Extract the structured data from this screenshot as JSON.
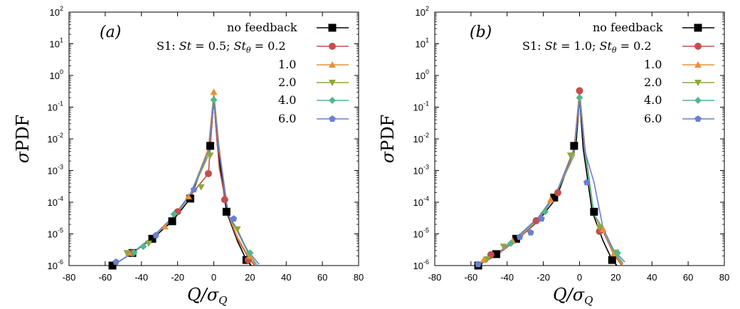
{
  "chart_data": [
    {
      "panel_label": "(a)",
      "type": "line",
      "ylabel": "σPDF",
      "xlabel": "Q/σ_Q",
      "xlim": [
        -80,
        80
      ],
      "ylim": [
        1e-06,
        100
      ],
      "y_scale": "log",
      "x_ticks": [
        "-80",
        "-60",
        "-40",
        "-20",
        "0",
        "20",
        "40",
        "60",
        "80"
      ],
      "legend": [
        "no feedback",
        "S1: St = 0.5; St_θ = 0.2",
        "1.0",
        "2.0",
        "4.0",
        "6.0"
      ],
      "legend_position": "top-right",
      "series": [
        {
          "name": "no feedback",
          "color": "#000000",
          "marker": "square",
          "x": [
            -56,
            -45,
            -34,
            -23,
            -13,
            -2,
            0,
            2,
            7,
            13,
            18,
            23
          ],
          "y": [
            1e-06,
            2.5e-06,
            7e-06,
            2.5e-05,
            0.00013,
            0.006,
            0.18,
            0.006,
            5e-05,
            6e-06,
            1.5e-06,
            7e-07
          ]
        },
        {
          "name": "St_θ = 0.2",
          "color": "#c0504d",
          "marker": "circle",
          "x": [
            -56,
            -45,
            -34,
            -23,
            -13,
            -3,
            0,
            3,
            8,
            13,
            19,
            24
          ],
          "y": [
            1e-06,
            2.5e-06,
            7.5e-06,
            2.8e-05,
            0.00016,
            0.0008,
            0.2,
            0.0012,
            4e-05,
            7e-06,
            1.8e-06,
            8e-07
          ]
        },
        {
          "name": "1.0",
          "color": "#e69138",
          "marker": "triangle-up",
          "x": [
            -56,
            -45,
            -34,
            -23,
            -13,
            -3,
            0,
            3,
            8,
            13,
            19,
            24
          ],
          "y": [
            1e-06,
            2.5e-06,
            7.5e-06,
            3e-05,
            0.00016,
            0.005,
            0.3,
            0.005,
            4e-05,
            8e-06,
            2e-06,
            9e-07
          ]
        },
        {
          "name": "2.0",
          "color": "#8fa63c",
          "marker": "triangle-down",
          "x": [
            -56,
            -45,
            -34,
            -23,
            -13,
            -3,
            0,
            3,
            8,
            13,
            19,
            24
          ],
          "y": [
            1e-06,
            2.5e-06,
            7.5e-06,
            3e-05,
            0.00017,
            0.003,
            0.22,
            0.004,
            4e-05,
            1.4e-05,
            2.5e-06,
            1e-06
          ]
        },
        {
          "name": "4.0",
          "color": "#4fb88c",
          "marker": "diamond",
          "x": [
            -56,
            -45,
            -34,
            -23,
            -13,
            -3,
            0,
            3,
            8,
            13,
            19,
            24
          ],
          "y": [
            1e-06,
            2.5e-06,
            7.5e-06,
            3e-05,
            0.00017,
            0.004,
            0.18,
            0.004,
            4e-05,
            1.2e-05,
            2.5e-06,
            1e-06
          ]
        },
        {
          "name": "6.0",
          "color": "#6a7fd0",
          "marker": "pentagon",
          "x": [
            -56,
            -45,
            -34,
            -23,
            -13,
            -3,
            0,
            3,
            8,
            13,
            19,
            25
          ],
          "y": [
            1e-06,
            2.5e-06,
            8e-06,
            3.2e-05,
            0.00018,
            0.004,
            0.16,
            0.004,
            4e-05,
            1.2e-05,
            2.8e-06,
            1.1e-06
          ]
        }
      ],
      "markers": [
        {
          "series": 0,
          "pts": [
            [
              -56,
              1e-06
            ],
            [
              -45,
              2.5e-06
            ],
            [
              -34,
              7e-06
            ],
            [
              -23,
              2.5e-05
            ],
            [
              -13,
              0.00013
            ],
            [
              -2,
              0.006
            ],
            [
              7,
              5e-05
            ],
            [
              18,
              1.5e-06
            ]
          ]
        },
        {
          "series": 1,
          "pts": [
            [
              -45,
              2.5e-06
            ],
            [
              -20,
              5e-05
            ],
            [
              -3,
              0.0008
            ],
            [
              6,
              0.00012
            ],
            [
              19,
              1.5e-06
            ]
          ]
        },
        {
          "series": 2,
          "pts": [
            [
              -47,
              2.5e-06
            ],
            [
              -27,
              1.7e-05
            ],
            [
              -14,
              0.00015
            ],
            [
              0,
              0.3
            ],
            [
              20,
              2e-06
            ]
          ]
        },
        {
          "series": 3,
          "pts": [
            [
              -48,
              2.5e-06
            ],
            [
              -36,
              5e-06
            ],
            [
              -7,
              0.0003
            ],
            [
              -2,
              0.003
            ],
            [
              13,
              1.4e-05
            ]
          ]
        },
        {
          "series": 4,
          "pts": [
            [
              -44,
              2.6e-06
            ],
            [
              -39,
              4e-06
            ],
            [
              -22,
              4.2e-05
            ],
            [
              0,
              0.17
            ],
            [
              20,
              2.5e-06
            ]
          ]
        },
        {
          "series": 5,
          "pts": [
            [
              -54,
              1.3e-06
            ],
            [
              -32,
              9e-06
            ],
            [
              -11,
              0.00025
            ],
            [
              11,
              3e-05
            ]
          ]
        }
      ]
    },
    {
      "panel_label": "(b)",
      "type": "line",
      "ylabel": "σPDF",
      "xlabel": "Q/σ_Q",
      "xlim": [
        -80,
        80
      ],
      "ylim": [
        1e-06,
        100
      ],
      "y_scale": "log",
      "x_ticks": [
        "-80",
        "-60",
        "-40",
        "-20",
        "0",
        "20",
        "40",
        "60",
        "80"
      ],
      "legend": [
        "no feedback",
        "S1: St = 1.0; St_θ = 0.2",
        "1.0",
        "2.0",
        "4.0",
        "6.0"
      ],
      "legend_position": "top-right",
      "series": [
        {
          "name": "no feedback",
          "color": "#000000",
          "marker": "square",
          "x": [
            -56,
            -45,
            -34,
            -23,
            -13,
            -2,
            0,
            2,
            7,
            13,
            18,
            23
          ],
          "y": [
            1e-06,
            2.3e-06,
            7e-06,
            2.5e-05,
            0.00013,
            0.006,
            0.2,
            0.005,
            5e-05,
            6e-06,
            1.5e-06,
            7e-07
          ]
        },
        {
          "name": "St_θ = 0.2",
          "color": "#c0504d",
          "marker": "circle",
          "x": [
            -56,
            -45,
            -34,
            -23,
            -13,
            -3,
            0,
            3,
            8,
            13,
            19,
            24
          ],
          "y": [
            1e-06,
            2.3e-06,
            7e-06,
            2.6e-05,
            0.00018,
            0.005,
            0.33,
            0.005,
            4e-05,
            1.2e-05,
            2.2e-06,
            9e-07
          ]
        },
        {
          "name": "1.0",
          "color": "#e69138",
          "marker": "triangle-up",
          "x": [
            -56,
            -45,
            -34,
            -23,
            -13,
            -3,
            0,
            3,
            8,
            13,
            19,
            24
          ],
          "y": [
            1e-06,
            2.4e-06,
            7.5e-06,
            2.8e-05,
            0.00018,
            0.004,
            0.3,
            0.0045,
            4e-05,
            1.3e-05,
            2.4e-06,
            1e-06
          ]
        },
        {
          "name": "2.0",
          "color": "#8fa63c",
          "marker": "triangle-down",
          "x": [
            -56,
            -45,
            -34,
            -23,
            -13,
            -3,
            0,
            3,
            8,
            13,
            19,
            24
          ],
          "y": [
            1e-06,
            2.5e-06,
            8e-06,
            3e-05,
            0.00018,
            0.003,
            0.25,
            0.004,
            4e-05,
            1.5e-05,
            2.6e-06,
            1.1e-06
          ]
        },
        {
          "name": "4.0",
          "color": "#4fb88c",
          "marker": "diamond",
          "x": [
            -56,
            -45,
            -34,
            -23,
            -13,
            -3,
            0,
            3,
            8,
            13,
            19,
            24
          ],
          "y": [
            1e-06,
            2.5e-06,
            8e-06,
            3e-05,
            0.00018,
            0.004,
            0.2,
            0.004,
            4e-05,
            1.5e-05,
            2.8e-06,
            1.2e-06
          ]
        },
        {
          "name": "6.0",
          "color": "#6a7fd0",
          "marker": "pentagon",
          "x": [
            -56,
            -45,
            -34,
            -23,
            -13,
            -3,
            0,
            3,
            8,
            13,
            19,
            25
          ],
          "y": [
            1e-06,
            2.5e-06,
            8.5e-06,
            3.2e-05,
            0.00019,
            0.004,
            0.18,
            0.004,
            0.00042,
            1.5e-05,
            3e-06,
            1.3e-06
          ]
        }
      ],
      "markers": [
        {
          "series": 0,
          "pts": [
            [
              -56,
              1e-06
            ],
            [
              -46,
              2.3e-06
            ],
            [
              -35,
              7e-06
            ],
            [
              -14,
              0.00014
            ],
            [
              -3,
              0.006
            ],
            [
              8,
              5e-05
            ],
            [
              18,
              1.5e-06
            ]
          ]
        },
        {
          "series": 1,
          "pts": [
            [
              -49,
              2.2e-06
            ],
            [
              -24,
              2.6e-05
            ],
            [
              -12,
              0.0002
            ],
            [
              0,
              0.33
            ],
            [
              11,
              1.2e-05
            ]
          ]
        },
        {
          "series": 2,
          "pts": [
            [
              -53,
              1.5e-06
            ],
            [
              -37,
              6e-06
            ],
            [
              -16,
              0.00012
            ],
            [
              13,
              1.4e-05
            ],
            [
              19,
              2.4e-06
            ]
          ]
        },
        {
          "series": 3,
          "pts": [
            [
              -51,
              1.6e-06
            ],
            [
              -42,
              4e-06
            ],
            [
              -5,
              0.003
            ],
            [
              11,
              1.6e-05
            ],
            [
              20,
              2.6e-06
            ]
          ]
        },
        {
          "series": 4,
          "pts": [
            [
              -38,
              5e-06
            ],
            [
              -19,
              5e-05
            ],
            [
              0,
              0.2
            ],
            [
              21,
              2.5e-06
            ]
          ]
        },
        {
          "series": 5,
          "pts": [
            [
              -56,
              1.1e-06
            ],
            [
              -33,
              8e-06
            ],
            [
              -21,
              3e-05
            ],
            [
              -27,
              1.1e-05
            ],
            [
              4,
              0.00042
            ]
          ]
        }
      ]
    }
  ]
}
